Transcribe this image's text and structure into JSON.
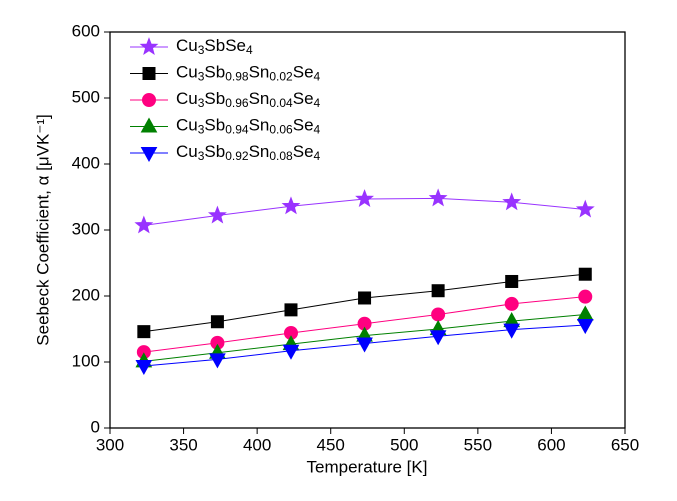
{
  "chart_data": {
    "type": "line",
    "x_label": "Temperature [K]",
    "y_label": "Seebeck Coefficient, α [μVK⁻¹]",
    "x": [
      323,
      373,
      423,
      473,
      523,
      573,
      623
    ],
    "series": [
      {
        "name": "Cu3SbSe4",
        "color": "#9933ff",
        "marker": "star",
        "values": [
          307,
          322,
          336,
          347,
          348,
          342,
          331
        ]
      },
      {
        "name": "Cu3Sb0.98Sn0.02Se4",
        "color": "#000000",
        "marker": "square",
        "values": [
          146,
          161,
          179,
          197,
          208,
          222,
          233
        ]
      },
      {
        "name": "Cu3Sb0.96Sn0.04Se4",
        "color": "#ff0080",
        "marker": "circle",
        "values": [
          115,
          129,
          144,
          158,
          172,
          188,
          199
        ]
      },
      {
        "name": "Cu3Sb0.94Sn0.06Se4",
        "color": "#008000",
        "marker": "triangle-up",
        "values": [
          101,
          114,
          127,
          140,
          150,
          162,
          172
        ]
      },
      {
        "name": "Cu3Sb0.92Sn0.08Se4",
        "color": "#0000ff",
        "marker": "triangle-down",
        "values": [
          94,
          104,
          117,
          128,
          139,
          149,
          156
        ]
      }
    ],
    "xlim": [
      300,
      650
    ],
    "xticks": [
      300,
      350,
      400,
      450,
      500,
      550,
      600,
      650
    ],
    "ylim": [
      0,
      600
    ],
    "yticks": [
      0,
      100,
      200,
      300,
      400,
      500,
      600
    ],
    "legend": "upper left",
    "grid": false
  }
}
